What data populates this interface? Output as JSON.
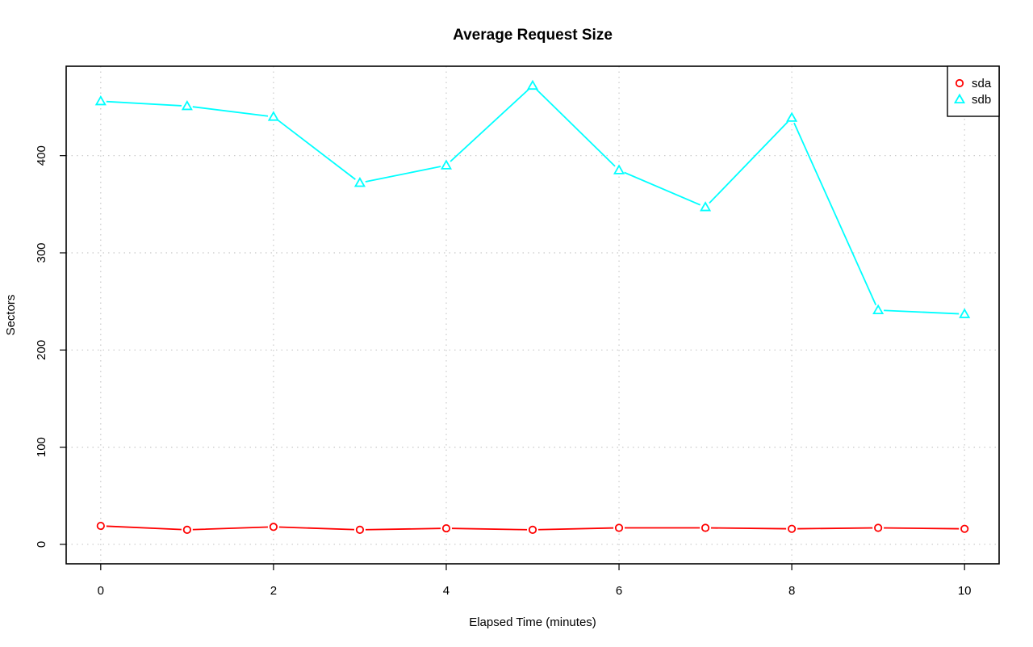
{
  "chart_data": {
    "type": "line",
    "title": "Average Request Size",
    "xlabel": "Elapsed Time (minutes)",
    "ylabel": "Sectors",
    "xlim": [
      -0.4,
      10.4
    ],
    "ylim": [
      -20,
      492
    ],
    "x_ticks": [
      0,
      2,
      4,
      6,
      8,
      10
    ],
    "y_ticks": [
      0,
      100,
      200,
      300,
      400
    ],
    "grid": true,
    "legend_position": "top-right",
    "x": [
      0,
      1,
      2,
      3,
      4,
      5,
      6,
      7,
      8,
      9,
      10
    ],
    "series": [
      {
        "name": "sda",
        "color": "#ff0000",
        "marker": "circle",
        "values": [
          19,
          15,
          18,
          15,
          16.5,
          15,
          17,
          17,
          16,
          17,
          16
        ]
      },
      {
        "name": "sdb",
        "color": "#00ffff",
        "marker": "triangle",
        "values": [
          456,
          451,
          440,
          372,
          390,
          472,
          385,
          347,
          439,
          241,
          237
        ]
      }
    ]
  }
}
